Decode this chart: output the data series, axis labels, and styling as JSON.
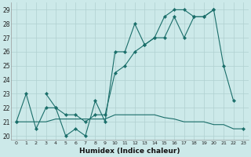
{
  "xlabel": "Humidex (Indice chaleur)",
  "x_values": [
    0,
    1,
    2,
    3,
    4,
    5,
    6,
    7,
    8,
    9,
    10,
    11,
    12,
    13,
    14,
    15,
    16,
    17,
    18,
    19,
    20,
    21,
    22,
    23
  ],
  "line_jagged": [
    21,
    23,
    20.5,
    22,
    22,
    20,
    20.5,
    20,
    22.5,
    21,
    26,
    26,
    28,
    26.5,
    27,
    28.5,
    29,
    29,
    28.5,
    28.5,
    29,
    25,
    22.5,
    null
  ],
  "line_smooth": [
    21,
    null,
    null,
    23,
    22,
    21.5,
    21.5,
    21,
    21.5,
    21.5,
    24.5,
    25,
    26,
    26.5,
    27,
    27,
    28.5,
    27,
    28.5,
    28.5,
    29,
    null,
    null,
    20.5
  ],
  "line_flat": [
    21,
    21,
    21,
    21,
    21.2,
    21.2,
    21.2,
    21.2,
    21.2,
    21.2,
    21.5,
    21.5,
    21.5,
    21.5,
    21.5,
    21.3,
    21.2,
    21,
    21,
    21,
    20.8,
    20.8,
    20.5,
    20.5
  ],
  "bg_color": "#cce9e9",
  "grid_color": "#b0d0d0",
  "line_color": "#1a6e6a",
  "ylim": [
    19.7,
    29.5
  ],
  "xlim": [
    -0.5,
    23.5
  ],
  "yticks": [
    20,
    21,
    22,
    23,
    24,
    25,
    26,
    27,
    28,
    29
  ],
  "xticks": [
    0,
    1,
    2,
    3,
    4,
    5,
    6,
    7,
    8,
    9,
    10,
    11,
    12,
    13,
    14,
    15,
    16,
    17,
    18,
    19,
    20,
    21,
    22,
    23
  ]
}
